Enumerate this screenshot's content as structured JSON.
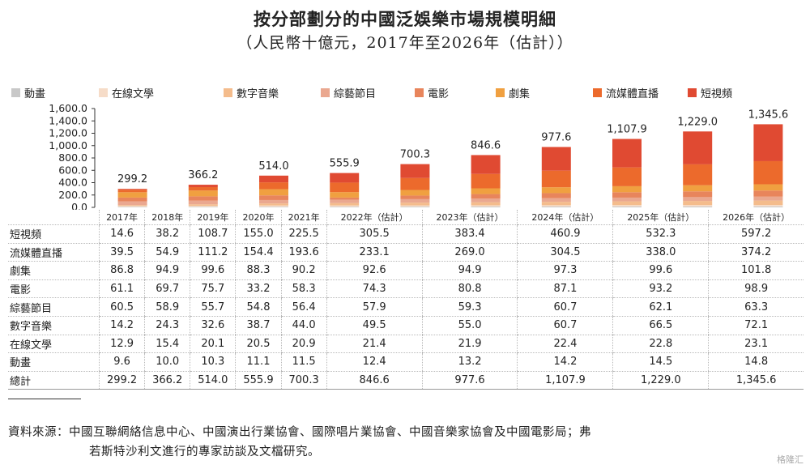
{
  "title": "按分部劃分的中國泛娛樂市場規模明細",
  "subtitle": "（人民幣十億元，2017年至2026年（估計））",
  "legend": [
    {
      "name": "動畫",
      "color": "#c8c8c8"
    },
    {
      "name": "在線文學",
      "color": "#f6dcc8"
    },
    {
      "name": "數字音樂",
      "color": "#f4bc8c"
    },
    {
      "name": "綜藝節目",
      "color": "#eaa890"
    },
    {
      "name": "電影",
      "color": "#e8855c"
    },
    {
      "name": "劇集",
      "color": "#f0a040"
    },
    {
      "name": "流媒體直播",
      "color": "#ec6a2c"
    },
    {
      "name": "短視頻",
      "color": "#e04a32"
    }
  ],
  "chart_data": {
    "type": "bar",
    "stacked": true,
    "categories": [
      "2017年",
      "2018年",
      "2019年",
      "2020年",
      "2021年",
      "2022年（估計）",
      "2023年（估計）",
      "2024年（估計）",
      "2025年（估計）",
      "2026年（估計）"
    ],
    "series": [
      {
        "name": "動畫",
        "values": [
          9.6,
          10.0,
          10.3,
          11.1,
          11.5,
          12.4,
          13.2,
          14.2,
          14.5,
          14.8
        ]
      },
      {
        "name": "在線文學",
        "values": [
          12.9,
          15.4,
          20.1,
          20.5,
          20.9,
          21.4,
          21.9,
          22.4,
          22.8,
          23.1
        ]
      },
      {
        "name": "數字音樂",
        "values": [
          14.2,
          24.3,
          32.6,
          38.7,
          44.0,
          49.5,
          55.0,
          60.7,
          66.5,
          72.1
        ]
      },
      {
        "name": "綜藝節目",
        "values": [
          60.5,
          58.9,
          55.7,
          54.8,
          56.4,
          57.9,
          59.3,
          60.7,
          62.1,
          63.3
        ]
      },
      {
        "name": "電影",
        "values": [
          61.1,
          69.7,
          75.7,
          33.2,
          58.3,
          74.3,
          80.8,
          87.1,
          93.2,
          98.9
        ]
      },
      {
        "name": "劇集",
        "values": [
          86.8,
          94.9,
          99.6,
          88.3,
          90.2,
          92.6,
          94.9,
          97.3,
          99.6,
          101.8
        ]
      },
      {
        "name": "流媒體直播",
        "values": [
          39.5,
          54.9,
          111.2,
          154.4,
          193.6,
          233.1,
          269.0,
          304.5,
          338.0,
          374.2
        ]
      },
      {
        "name": "短視頻",
        "values": [
          14.6,
          38.2,
          108.7,
          155.0,
          225.5,
          305.5,
          383.4,
          460.9,
          532.3,
          597.2
        ]
      }
    ],
    "totals": [
      "299.2",
      "366.2",
      "514.0",
      "555.9",
      "700.3",
      "846.6",
      "977.6",
      "1,107.9",
      "1,229.0",
      "1,345.6"
    ],
    "ylim": [
      0,
      1600
    ],
    "yticks": [
      "0.0",
      "200.0",
      "400.0",
      "600.0",
      "800.0",
      "1,000.0",
      "1,200.0",
      "1,400.0",
      "1,600.0"
    ],
    "legend_position": "top"
  },
  "table": {
    "rows": [
      {
        "label": "短視頻",
        "values": [
          "14.6",
          "38.2",
          "108.7",
          "155.0",
          "225.5",
          "305.5",
          "383.4",
          "460.9",
          "532.3",
          "597.2"
        ]
      },
      {
        "label": "流媒體直播",
        "values": [
          "39.5",
          "54.9",
          "111.2",
          "154.4",
          "193.6",
          "233.1",
          "269.0",
          "304.5",
          "338.0",
          "374.2"
        ]
      },
      {
        "label": "劇集",
        "values": [
          "86.8",
          "94.9",
          "99.6",
          "88.3",
          "90.2",
          "92.6",
          "94.9",
          "97.3",
          "99.6",
          "101.8"
        ]
      },
      {
        "label": "電影",
        "values": [
          "61.1",
          "69.7",
          "75.7",
          "33.2",
          "58.3",
          "74.3",
          "80.8",
          "87.1",
          "93.2",
          "98.9"
        ]
      },
      {
        "label": "綜藝節目",
        "values": [
          "60.5",
          "58.9",
          "55.7",
          "54.8",
          "56.4",
          "57.9",
          "59.3",
          "60.7",
          "62.1",
          "63.3"
        ]
      },
      {
        "label": "數字音樂",
        "values": [
          "14.2",
          "24.3",
          "32.6",
          "38.7",
          "44.0",
          "49.5",
          "55.0",
          "60.7",
          "66.5",
          "72.1"
        ]
      },
      {
        "label": "在線文學",
        "values": [
          "12.9",
          "15.4",
          "20.1",
          "20.5",
          "20.9",
          "21.4",
          "21.9",
          "22.4",
          "22.8",
          "23.1"
        ]
      },
      {
        "label": "動畫",
        "values": [
          "9.6",
          "10.0",
          "10.3",
          "11.1",
          "11.5",
          "12.4",
          "13.2",
          "14.2",
          "14.5",
          "14.8"
        ]
      },
      {
        "label": "總計",
        "values": [
          "299.2",
          "366.2",
          "514.0",
          "555.9",
          "700.3",
          "846.6",
          "977.6",
          "1,107.9",
          "1,229.0",
          "1,345.6"
        ]
      }
    ]
  },
  "source_line1": "資料來源：中國互聯網絡信息中心、中國演出行業協會、國際唱片業協會、中國音樂家協會及中國電影局；弗",
  "source_line2": "若斯特沙利文進行的專家訪談及文檔研究。",
  "watermark": "格隆汇"
}
